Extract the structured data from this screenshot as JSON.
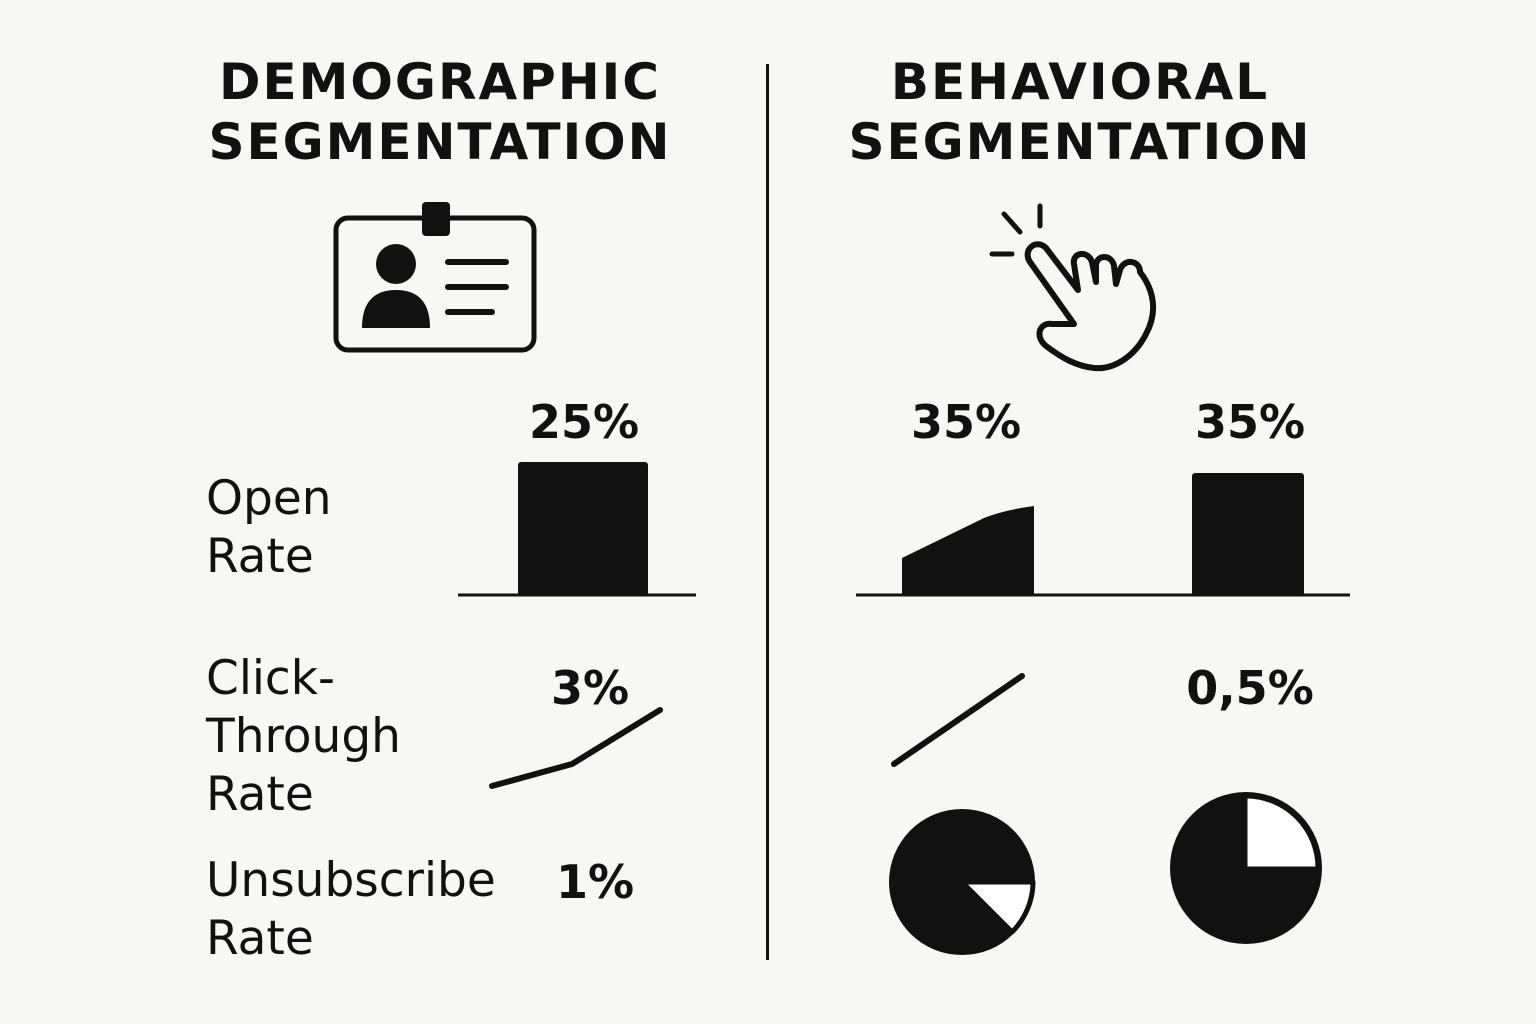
{
  "colors": {
    "ink": "#111111",
    "background": "#f7f7f5"
  },
  "left_panel": {
    "title_line1": "DEMOGRAPHIC",
    "title_line2": "SEGMENTATION",
    "icon": "id-badge-icon",
    "metrics": {
      "open_rate": {
        "label_line1": "Open",
        "label_line2": "Rate",
        "value": "25%"
      },
      "click_through_rate": {
        "label_line1": "Click-",
        "label_line2": "Through",
        "label_line3": "Rate",
        "value": "3%"
      },
      "unsubscribe_rate": {
        "label_line1": "Unsubscribe",
        "label_line2": "Rate",
        "value": "1%"
      }
    }
  },
  "right_panel": {
    "title_line1": "BEHAVIORAL",
    "title_line2": "SEGMENTATION",
    "icon": "pointing-hand-click-icon",
    "metrics": {
      "open_rate_a": {
        "value": "35%"
      },
      "open_rate_b": {
        "value": "35%"
      },
      "click_value": {
        "value": "0,5%"
      }
    }
  }
}
